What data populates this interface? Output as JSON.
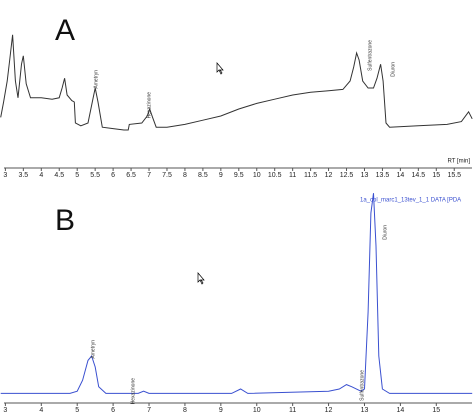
{
  "chart_data": [
    {
      "type": "line",
      "title": "A",
      "x_label": "RT [min]",
      "xlim": [
        2.85,
        16.05
      ],
      "ylim": [
        0,
        100
      ],
      "xticks": [
        3,
        3.5,
        4,
        4.5,
        5,
        5.5,
        6,
        6.5,
        7,
        7.5,
        8,
        8.5,
        9,
        9.5,
        10,
        10.5,
        11,
        11.5,
        12,
        12.5,
        13,
        13.5,
        14,
        14.5,
        15,
        15.5
      ],
      "annotations": [
        "Ametryn",
        "Hexazinone",
        "Sulfentrazone",
        "Diuron"
      ],
      "series": [
        {
          "color": "#333333",
          "x": [
            2.87,
            2.95,
            3.05,
            3.12,
            3.2,
            3.28,
            3.35,
            3.45,
            3.5,
            3.58,
            3.7,
            4.0,
            4.3,
            4.5,
            4.58,
            4.65,
            4.72,
            4.85,
            4.92,
            4.95,
            5.1,
            5.3,
            5.42,
            5.5,
            5.58,
            5.7,
            6.0,
            6.3,
            6.42,
            6.45,
            6.8,
            6.95,
            7.02,
            7.1,
            7.2,
            7.5,
            8,
            8.5,
            9,
            9.5,
            10,
            10.5,
            11,
            11.5,
            12,
            12.4,
            12.6,
            12.7,
            12.78,
            12.85,
            12.95,
            13.1,
            13.25,
            13.35,
            13.45,
            13.52,
            13.6,
            13.7,
            14.5,
            15.3,
            15.7,
            15.9,
            16.0
          ],
          "values": [
            34,
            45,
            60,
            75,
            93,
            60,
            48,
            72,
            78,
            58,
            48,
            48,
            47,
            48,
            55,
            62,
            50,
            46,
            45,
            30,
            28,
            30,
            45,
            55,
            45,
            27,
            26,
            25,
            25,
            29,
            30,
            35,
            40,
            34,
            27,
            27,
            29,
            32,
            35,
            40,
            44,
            47,
            50,
            52,
            53,
            54,
            60,
            70,
            80,
            75,
            60,
            55,
            55,
            62,
            72,
            60,
            30,
            27,
            28,
            29,
            31,
            38,
            33
          ]
        }
      ]
    },
    {
      "type": "line",
      "title": "B",
      "xlim": [
        2.85,
        16.05
      ],
      "ylim": [
        0,
        100
      ],
      "xticks": [
        3,
        4,
        5,
        6,
        7,
        8,
        9,
        10,
        11,
        12,
        13,
        14,
        15
      ],
      "annotations": [
        "Ametryn",
        "Hexazinone",
        "Sulfentrazone",
        "Diuron"
      ],
      "series": [
        {
          "name": "1a_col_marc1_13tev_1_1 DATA [PDA",
          "color": "#3a50d0",
          "x": [
            2.87,
            4,
            4.8,
            5.0,
            5.15,
            5.3,
            5.4,
            5.5,
            5.6,
            5.8,
            6.7,
            6.85,
            7,
            9.3,
            9.55,
            9.75,
            12,
            12.3,
            12.5,
            12.65,
            12.9,
            13.0,
            13.1,
            13.18,
            13.25,
            13.32,
            13.4,
            13.5,
            13.7,
            16.0
          ],
          "values": [
            3,
            3,
            3,
            4,
            9,
            18,
            20,
            15,
            6,
            3,
            3,
            4,
            3,
            3,
            5,
            3,
            4,
            5,
            7,
            6,
            4,
            5,
            40,
            85,
            94,
            70,
            20,
            5,
            3,
            3
          ]
        }
      ]
    }
  ]
}
